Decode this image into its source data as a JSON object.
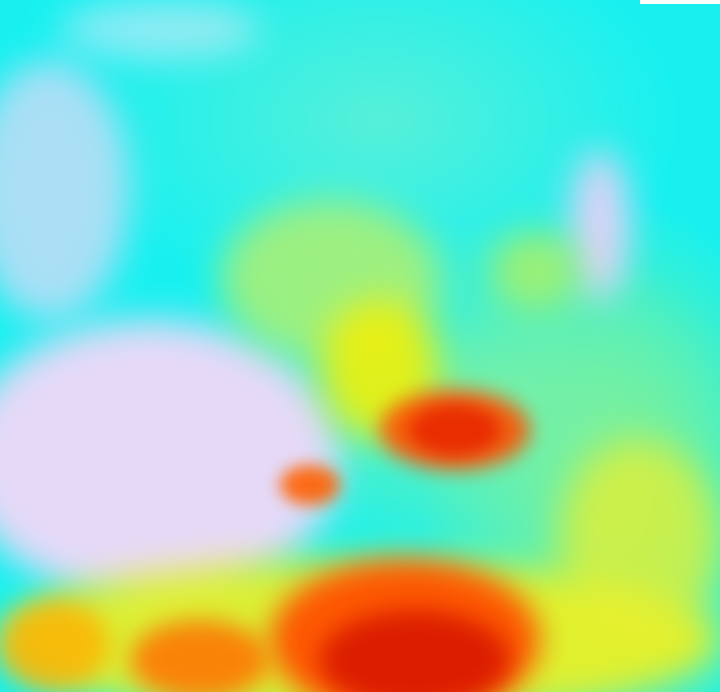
{
  "image": {
    "kind": "false-color satellite imagery",
    "palette": {
      "cyan": "#18f0f0",
      "light_green": "#80f0a0",
      "green_yellow": "#c8f060",
      "yellow": "#f8f000",
      "orange": "#ff8000",
      "red": "#e82000",
      "lavender": "#f0d8f8"
    }
  }
}
